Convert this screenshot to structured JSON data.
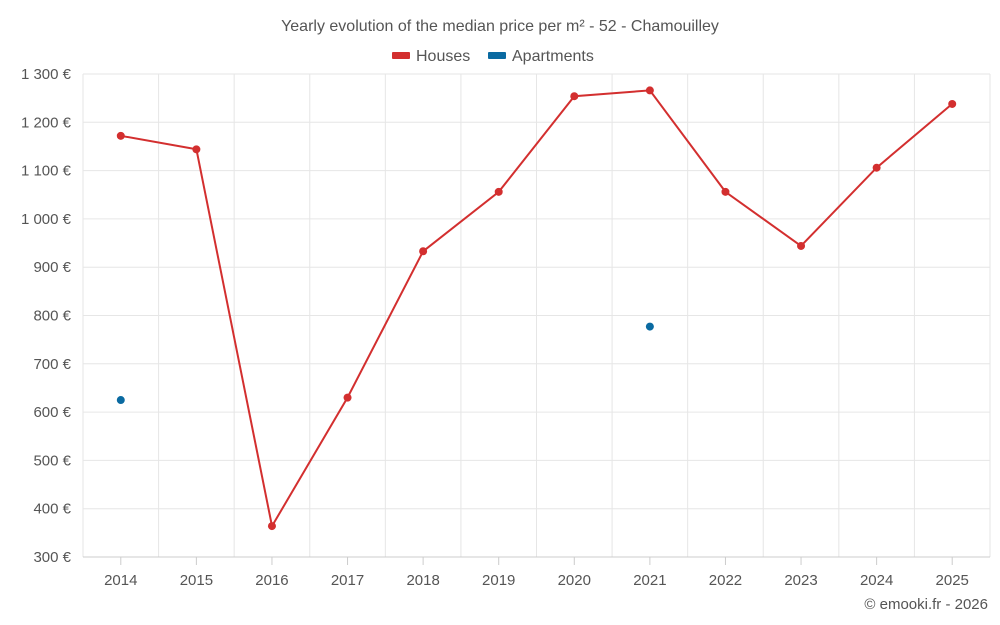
{
  "chart_data": {
    "type": "line",
    "title": "Yearly evolution of the median price per m² - 52 - Chamouilley",
    "categories": [
      "2014",
      "2015",
      "2016",
      "2017",
      "2018",
      "2019",
      "2020",
      "2021",
      "2022",
      "2023",
      "2024",
      "2025"
    ],
    "series": [
      {
        "name": "Houses",
        "color": "#d32f2f",
        "style": "line",
        "values": [
          1172,
          1144,
          364,
          630,
          933,
          1056,
          1254,
          1266,
          1056,
          944,
          1106,
          1238
        ]
      },
      {
        "name": "Apartments",
        "color": "#0a6aa1",
        "style": "points",
        "values": [
          625,
          null,
          null,
          null,
          null,
          null,
          null,
          777,
          null,
          null,
          null,
          null
        ]
      }
    ],
    "ylim": [
      300,
      1300
    ],
    "yticks": [
      1300,
      1200,
      1100,
      1000,
      900,
      800,
      700,
      600,
      500,
      400,
      300
    ],
    "ytick_labels": [
      "1 300 €",
      "1 200 €",
      "1 100 €",
      "1 000 €",
      "900 €",
      "800 €",
      "700 €",
      "600 €",
      "500 €",
      "400 €",
      "300 €"
    ],
    "xlabel": "",
    "ylabel": "",
    "grid": true,
    "legend_position": "top-center"
  },
  "credit": "© emooki.fr - 2026"
}
